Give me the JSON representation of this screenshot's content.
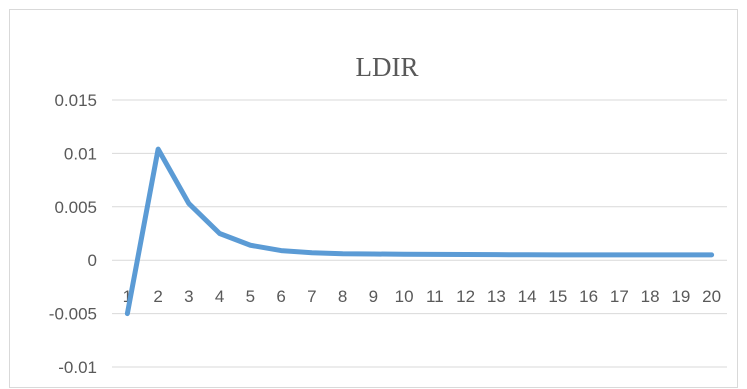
{
  "chart_data": {
    "type": "line",
    "title": "LDIR",
    "xlabel": "",
    "ylabel": "",
    "categories": [
      "1",
      "2",
      "3",
      "4",
      "5",
      "6",
      "7",
      "8",
      "9",
      "10",
      "11",
      "12",
      "13",
      "14",
      "15",
      "16",
      "17",
      "18",
      "19",
      "20"
    ],
    "series": [
      {
        "values": [
          -0.005,
          0.0104,
          0.0053,
          0.0025,
          0.0014,
          0.0009,
          0.0007,
          0.0006,
          0.00058,
          0.00056,
          0.00054,
          0.00053,
          0.00052,
          0.00051,
          0.0005,
          0.0005,
          0.0005,
          0.0005,
          0.0005,
          0.0005
        ]
      }
    ],
    "y_ticks": [
      "0.015",
      "0.01",
      "0.005",
      "0",
      "-0.005",
      "-0.01"
    ],
    "ylim": [
      -0.01,
      0.015
    ],
    "grid": true,
    "legend": "none",
    "line_color": "#5b9bd5"
  }
}
